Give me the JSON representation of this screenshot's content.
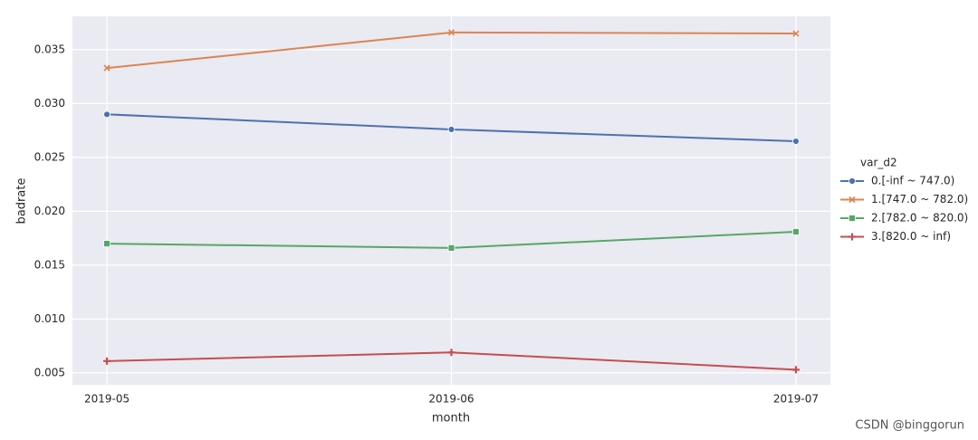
{
  "chart_data": {
    "type": "line",
    "x_label": "month",
    "y_label": "badrate",
    "categories": [
      "2019-05",
      "2019-06",
      "2019-07"
    ],
    "legend_title": "var_d2",
    "series": [
      {
        "name": "0.[-inf ~ 747.0)",
        "color": "#4c72b0",
        "marker": "circle",
        "values": [
          0.029,
          0.0276,
          0.0265
        ]
      },
      {
        "name": "1.[747.0 ~ 782.0)",
        "color": "#dd8452",
        "marker": "x",
        "values": [
          0.0333,
          0.0366,
          0.0365
        ]
      },
      {
        "name": "2.[782.0 ~ 820.0)",
        "color": "#55a868",
        "marker": "square",
        "values": [
          0.017,
          0.0166,
          0.0181
        ]
      },
      {
        "name": "3.[820.0 ~ inf)",
        "color": "#c44e52",
        "marker": "plus",
        "values": [
          0.0061,
          0.0069,
          0.0053
        ]
      }
    ],
    "ylim": [
      0.0039,
      0.0381
    ],
    "yticks": [
      0.005,
      {
        "value": 0.01,
        "label": "0.010"
      },
      0.015,
      {
        "value": 0.02,
        "label": "0.020"
      },
      0.025,
      {
        "value": 0.03,
        "label": "0.030"
      },
      0.035
    ],
    "grid": true,
    "legend_position": "right",
    "watermark": "CSDN @binggorun"
  }
}
